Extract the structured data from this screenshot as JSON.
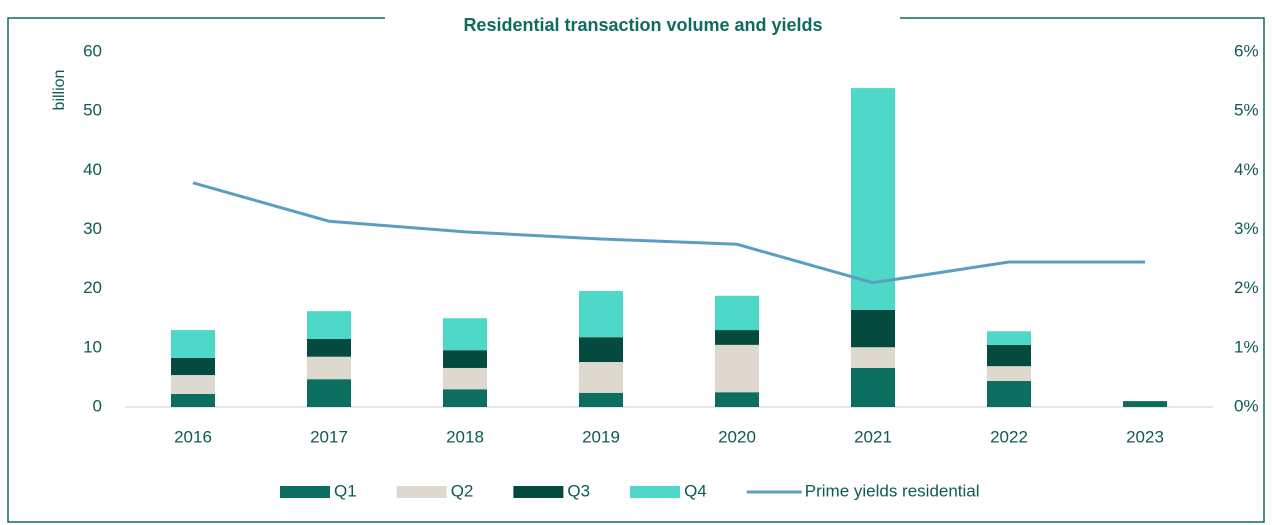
{
  "chart_data": {
    "type": "bar",
    "stacked": true,
    "title": "Residential transaction volume and yields",
    "y_label": "billion",
    "categories": [
      "2016",
      "2017",
      "2018",
      "2019",
      "2020",
      "2021",
      "2022",
      "2023"
    ],
    "series": [
      {
        "name": "Q1",
        "color": "#0b6e5f",
        "values": [
          2.2,
          4.7,
          3.0,
          2.4,
          2.5,
          6.6,
          4.4,
          1.0
        ]
      },
      {
        "name": "Q2",
        "color": "#ddd9cf",
        "values": [
          3.2,
          3.8,
          3.6,
          5.2,
          8.0,
          3.5,
          2.5,
          null
        ]
      },
      {
        "name": "Q3",
        "color": "#044a3e",
        "values": [
          2.9,
          3.0,
          3.0,
          4.2,
          2.5,
          6.3,
          3.6,
          null
        ]
      },
      {
        "name": "Q4",
        "color": "#4dd8c8",
        "values": [
          4.7,
          4.7,
          5.4,
          7.8,
          5.8,
          37.5,
          2.3,
          null
        ]
      },
      {
        "name": "Prime yields residential",
        "type": "line",
        "axis": "y2",
        "color": "#5b9ec0",
        "values": [
          3.79,
          3.14,
          2.96,
          2.84,
          2.75,
          2.1,
          2.45,
          2.45
        ]
      }
    ],
    "ylim": [
      0,
      60
    ],
    "yticks": [
      0,
      10,
      20,
      30,
      40,
      50,
      60
    ],
    "y2lim": [
      0,
      6
    ],
    "y2ticks": [
      {
        "value": 0,
        "label": "0%"
      },
      {
        "value": 1,
        "label": "1%"
      },
      {
        "value": 2,
        "label": "2%"
      },
      {
        "value": 3,
        "label": "3%"
      },
      {
        "value": 4,
        "label": "4%"
      },
      {
        "value": 5,
        "label": "5%"
      },
      {
        "value": 6,
        "label": "6%"
      }
    ],
    "legend": "bottom"
  }
}
